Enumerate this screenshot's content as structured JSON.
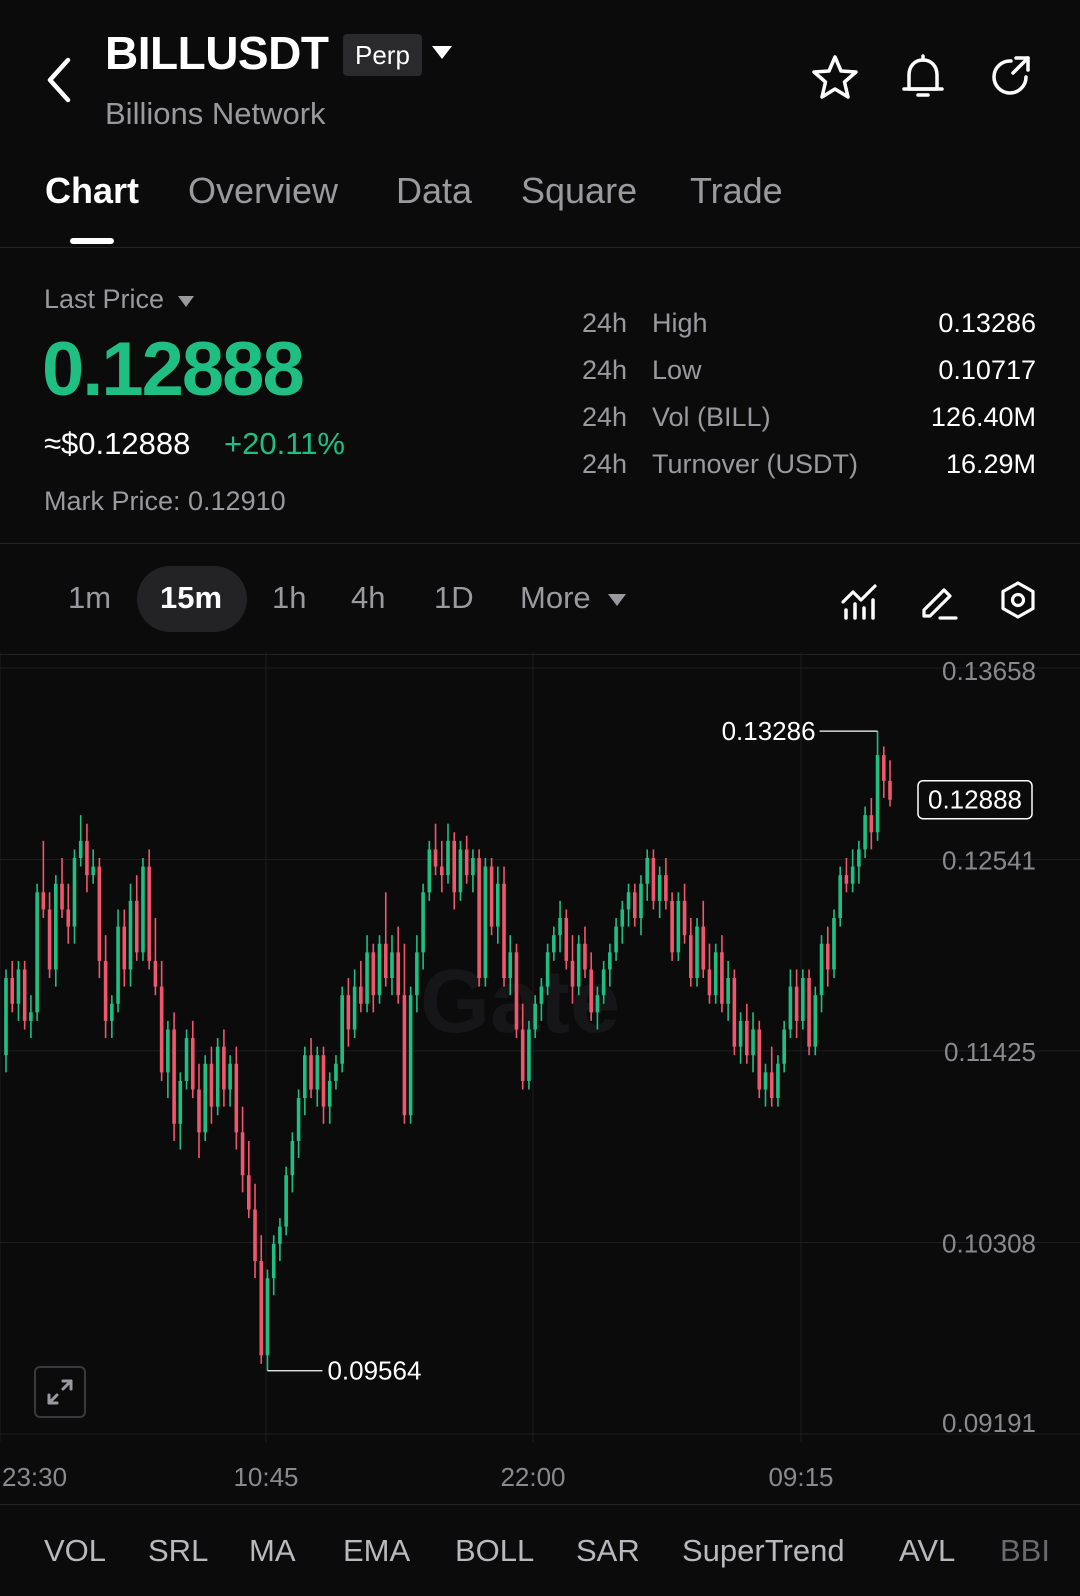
{
  "header": {
    "symbol": "BILLUSDT",
    "contract_badge": "Perp",
    "subtitle": "Billions Network",
    "icons": [
      "back-icon",
      "star-icon",
      "bell-icon",
      "share-icon"
    ]
  },
  "tabs": [
    {
      "label": "Chart",
      "active": true
    },
    {
      "label": "Overview"
    },
    {
      "label": "Data"
    },
    {
      "label": "Square"
    },
    {
      "label": "Trade"
    }
  ],
  "price": {
    "mode_label": "Last Price",
    "last": "0.12888",
    "usd": "≈$0.12888",
    "change": "+20.11%",
    "mark": "Mark Price: 0.12910"
  },
  "stats": [
    {
      "period": "24h",
      "label": "High",
      "value": "0.13286"
    },
    {
      "period": "24h",
      "label": "Low",
      "value": "0.10717"
    },
    {
      "period": "24h",
      "label": "Vol (BILL)",
      "value": "126.40M"
    },
    {
      "period": "24h",
      "label": "Turnover (USDT)",
      "value": "16.29M"
    }
  ],
  "timeframes": {
    "items": [
      "1m",
      "15m",
      "1h",
      "4h",
      "1D"
    ],
    "active": "15m",
    "more_label": "More"
  },
  "toolbar_icons": [
    "indicator-icon",
    "draw-icon",
    "settings-icon"
  ],
  "colors": {
    "up": "#1fbf83",
    "down": "#f0566e",
    "background": "#0b0b0c",
    "grid": "#1e1e21"
  },
  "chart_data": {
    "type": "candlestick",
    "watermark": "Gate",
    "y_ticks": [
      "0.13658",
      "0.12541",
      "0.11425",
      "0.10308",
      "0.09191"
    ],
    "ylim": [
      0.09191,
      0.13658
    ],
    "x_ticks": [
      "23:30",
      "10:45",
      "22:00",
      "09:15"
    ],
    "high_marker": "0.13286",
    "low_marker": "0.09564",
    "last_price_label": "0.12888",
    "ohlc": [
      [
        0.114,
        0.119,
        0.113,
        0.1185
      ],
      [
        0.1185,
        0.1195,
        0.1165,
        0.117
      ],
      [
        0.117,
        0.1195,
        0.116,
        0.119
      ],
      [
        0.119,
        0.1195,
        0.1155,
        0.116
      ],
      [
        0.116,
        0.1175,
        0.115,
        0.1165
      ],
      [
        0.1165,
        0.124,
        0.116,
        0.1235
      ],
      [
        0.1235,
        0.1265,
        0.122,
        0.1225
      ],
      [
        0.1225,
        0.1235,
        0.1185,
        0.119
      ],
      [
        0.119,
        0.1245,
        0.118,
        0.124
      ],
      [
        0.124,
        0.1255,
        0.122,
        0.1225
      ],
      [
        0.1225,
        0.124,
        0.1205,
        0.1215
      ],
      [
        0.1215,
        0.126,
        0.1205,
        0.1255
      ],
      [
        0.1255,
        0.128,
        0.125,
        0.1265
      ],
      [
        0.1265,
        0.1275,
        0.1235,
        0.1245
      ],
      [
        0.1245,
        0.126,
        0.124,
        0.125
      ],
      [
        0.125,
        0.1255,
        0.1185,
        0.1195
      ],
      [
        0.1195,
        0.121,
        0.115,
        0.116
      ],
      [
        0.116,
        0.1175,
        0.115,
        0.117
      ],
      [
        0.117,
        0.1225,
        0.1165,
        0.1215
      ],
      [
        0.1215,
        0.1225,
        0.118,
        0.119
      ],
      [
        0.119,
        0.124,
        0.118,
        0.123
      ],
      [
        0.123,
        0.1245,
        0.1195,
        0.12
      ],
      [
        0.12,
        0.1255,
        0.1195,
        0.125
      ],
      [
        0.125,
        0.126,
        0.119,
        0.1195
      ],
      [
        0.1195,
        0.122,
        0.1175,
        0.118
      ],
      [
        0.118,
        0.1195,
        0.1125,
        0.113
      ],
      [
        0.113,
        0.116,
        0.1115,
        0.1155
      ],
      [
        0.1155,
        0.1165,
        0.109,
        0.11
      ],
      [
        0.11,
        0.113,
        0.1085,
        0.1125
      ],
      [
        0.1125,
        0.1155,
        0.112,
        0.115
      ],
      [
        0.115,
        0.116,
        0.1115,
        0.112
      ],
      [
        0.112,
        0.1135,
        0.108,
        0.1095
      ],
      [
        0.1095,
        0.114,
        0.109,
        0.1135
      ],
      [
        0.1135,
        0.1145,
        0.11,
        0.111
      ],
      [
        0.111,
        0.115,
        0.1105,
        0.1145
      ],
      [
        0.1145,
        0.1155,
        0.111,
        0.112
      ],
      [
        0.112,
        0.114,
        0.111,
        0.1135
      ],
      [
        0.1135,
        0.1145,
        0.1085,
        0.1095
      ],
      [
        0.1095,
        0.111,
        0.106,
        0.107
      ],
      [
        0.107,
        0.109,
        0.1045,
        0.105
      ],
      [
        0.105,
        0.1065,
        0.101,
        0.102
      ],
      [
        0.102,
        0.1035,
        0.096,
        0.0965
      ],
      [
        0.0965,
        0.1015,
        0.0956,
        0.101
      ],
      [
        0.101,
        0.1035,
        0.1,
        0.103
      ],
      [
        0.103,
        0.1045,
        0.102,
        0.104
      ],
      [
        0.104,
        0.1075,
        0.1035,
        0.107
      ],
      [
        0.107,
        0.1095,
        0.106,
        0.109
      ],
      [
        0.109,
        0.112,
        0.108,
        0.1115
      ],
      [
        0.1115,
        0.1145,
        0.1105,
        0.114
      ],
      [
        0.114,
        0.115,
        0.1115,
        0.112
      ],
      [
        0.112,
        0.1145,
        0.111,
        0.114
      ],
      [
        0.114,
        0.1145,
        0.11,
        0.111
      ],
      [
        0.111,
        0.113,
        0.11,
        0.1125
      ],
      [
        0.1125,
        0.114,
        0.112,
        0.1135
      ],
      [
        0.1135,
        0.118,
        0.113,
        0.1175
      ],
      [
        0.1175,
        0.1185,
        0.1145,
        0.1155
      ],
      [
        0.1155,
        0.119,
        0.115,
        0.118
      ],
      [
        0.118,
        0.1195,
        0.1165,
        0.117
      ],
      [
        0.117,
        0.121,
        0.1165,
        0.12
      ],
      [
        0.12,
        0.1205,
        0.1165,
        0.1175
      ],
      [
        0.1175,
        0.121,
        0.117,
        0.1205
      ],
      [
        0.1205,
        0.1235,
        0.118,
        0.1185
      ],
      [
        0.1185,
        0.121,
        0.1175,
        0.12
      ],
      [
        0.12,
        0.1215,
        0.117,
        0.1175
      ],
      [
        0.1175,
        0.1205,
        0.11,
        0.1105
      ],
      [
        0.1105,
        0.118,
        0.11,
        0.1175
      ],
      [
        0.1175,
        0.121,
        0.1165,
        0.12
      ],
      [
        0.12,
        0.124,
        0.119,
        0.1235
      ],
      [
        0.1235,
        0.1265,
        0.123,
        0.126
      ],
      [
        0.126,
        0.1275,
        0.1245,
        0.125
      ],
      [
        0.125,
        0.1265,
        0.1235,
        0.1245
      ],
      [
        0.1245,
        0.1275,
        0.124,
        0.1265
      ],
      [
        0.1265,
        0.127,
        0.1225,
        0.1235
      ],
      [
        0.1235,
        0.1265,
        0.123,
        0.126
      ],
      [
        0.126,
        0.1268,
        0.124,
        0.1245
      ],
      [
        0.1245,
        0.126,
        0.1235,
        0.1255
      ],
      [
        0.1255,
        0.126,
        0.118,
        0.1185
      ],
      [
        0.1185,
        0.1255,
        0.118,
        0.125
      ],
      [
        0.125,
        0.1255,
        0.121,
        0.1215
      ],
      [
        0.1215,
        0.125,
        0.1205,
        0.124
      ],
      [
        0.124,
        0.125,
        0.118,
        0.1185
      ],
      [
        0.1185,
        0.121,
        0.1175,
        0.12
      ],
      [
        0.12,
        0.1205,
        0.115,
        0.1155
      ],
      [
        0.1155,
        0.117,
        0.112,
        0.1125
      ],
      [
        0.1125,
        0.116,
        0.112,
        0.1155
      ],
      [
        0.1155,
        0.1175,
        0.115,
        0.117
      ],
      [
        0.117,
        0.1185,
        0.116,
        0.118
      ],
      [
        0.118,
        0.1205,
        0.1175,
        0.12
      ],
      [
        0.12,
        0.1215,
        0.1195,
        0.121
      ],
      [
        0.121,
        0.123,
        0.12,
        0.122
      ],
      [
        0.122,
        0.1225,
        0.119,
        0.1195
      ],
      [
        0.1195,
        0.121,
        0.117,
        0.118
      ],
      [
        0.118,
        0.121,
        0.1175,
        0.1205
      ],
      [
        0.1205,
        0.1215,
        0.1185,
        0.119
      ],
      [
        0.119,
        0.12,
        0.116,
        0.1165
      ],
      [
        0.1165,
        0.118,
        0.1155,
        0.1175
      ],
      [
        0.1175,
        0.1195,
        0.117,
        0.119
      ],
      [
        0.119,
        0.1205,
        0.118,
        0.12
      ],
      [
        0.12,
        0.122,
        0.1195,
        0.1215
      ],
      [
        0.1215,
        0.123,
        0.1205,
        0.1225
      ],
      [
        0.1225,
        0.124,
        0.1215,
        0.1235
      ],
      [
        0.1235,
        0.124,
        0.1215,
        0.122
      ],
      [
        0.122,
        0.1245,
        0.121,
        0.124
      ],
      [
        0.124,
        0.126,
        0.123,
        0.1255
      ],
      [
        0.1255,
        0.126,
        0.1225,
        0.123
      ],
      [
        0.123,
        0.125,
        0.122,
        0.1245
      ],
      [
        0.1245,
        0.1255,
        0.1225,
        0.123
      ],
      [
        0.123,
        0.1235,
        0.1195,
        0.12
      ],
      [
        0.12,
        0.1235,
        0.1195,
        0.123
      ],
      [
        0.123,
        0.124,
        0.1205,
        0.121
      ],
      [
        0.121,
        0.122,
        0.118,
        0.1185
      ],
      [
        0.1185,
        0.122,
        0.118,
        0.1215
      ],
      [
        0.1215,
        0.123,
        0.1185,
        0.119
      ],
      [
        0.119,
        0.1205,
        0.117,
        0.1175
      ],
      [
        0.1175,
        0.1205,
        0.117,
        0.12
      ],
      [
        0.12,
        0.121,
        0.1165,
        0.117
      ],
      [
        0.117,
        0.1195,
        0.116,
        0.1185
      ],
      [
        0.1185,
        0.119,
        0.114,
        0.1145
      ],
      [
        0.1145,
        0.1165,
        0.1135,
        0.116
      ],
      [
        0.116,
        0.117,
        0.1135,
        0.114
      ],
      [
        0.114,
        0.1165,
        0.113,
        0.1155
      ],
      [
        0.1155,
        0.116,
        0.1115,
        0.112
      ],
      [
        0.112,
        0.1135,
        0.111,
        0.113
      ],
      [
        0.113,
        0.1145,
        0.111,
        0.1115
      ],
      [
        0.1115,
        0.114,
        0.111,
        0.1135
      ],
      [
        0.1135,
        0.116,
        0.113,
        0.1155
      ],
      [
        0.1155,
        0.119,
        0.115,
        0.118
      ],
      [
        0.118,
        0.119,
        0.115,
        0.116
      ],
      [
        0.116,
        0.119,
        0.1155,
        0.1185
      ],
      [
        0.1185,
        0.119,
        0.114,
        0.1145
      ],
      [
        0.1145,
        0.118,
        0.114,
        0.1175
      ],
      [
        0.1175,
        0.121,
        0.1165,
        0.1205
      ],
      [
        0.1205,
        0.1215,
        0.118,
        0.119
      ],
      [
        0.119,
        0.1225,
        0.1185,
        0.122
      ],
      [
        0.122,
        0.125,
        0.1215,
        0.1245
      ],
      [
        0.1245,
        0.1255,
        0.1235,
        0.124
      ],
      [
        0.124,
        0.126,
        0.1235,
        0.125
      ],
      [
        0.125,
        0.1265,
        0.124,
        0.126
      ],
      [
        0.126,
        0.1285,
        0.1255,
        0.128
      ],
      [
        0.128,
        0.129,
        0.126,
        0.127
      ],
      [
        0.127,
        0.1329,
        0.1265,
        0.1315
      ],
      [
        0.1315,
        0.132,
        0.129,
        0.13
      ],
      [
        0.13,
        0.1312,
        0.1285,
        0.1289
      ]
    ]
  },
  "indicators": [
    "VOL",
    "SRL",
    "MA",
    "EMA",
    "BOLL",
    "SAR",
    "SuperTrend",
    "AVL",
    "BBI"
  ]
}
